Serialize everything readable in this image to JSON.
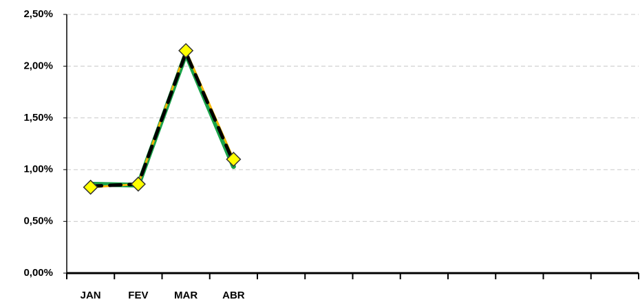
{
  "chart_data": {
    "type": "line",
    "categories": [
      "JAN",
      "FEV",
      "MAR",
      "ABR",
      null,
      null,
      null,
      null,
      null,
      null,
      null,
      null
    ],
    "series": [
      {
        "color": "#1aa34a",
        "values": [
          0.86,
          0.85,
          2.12,
          1.03,
          null,
          null,
          null,
          null,
          null,
          null,
          null,
          null
        ]
      },
      {
        "color": "#f5b400",
        "marker_color": "#ffff00",
        "values": [
          0.83,
          0.86,
          2.15,
          1.1,
          null,
          null,
          null,
          null,
          null,
          null,
          null,
          null
        ]
      },
      {
        "color": "#000000",
        "dashed": true,
        "values": [
          0.84,
          0.86,
          2.13,
          1.07,
          null,
          null,
          null,
          null,
          null,
          null,
          null,
          null
        ]
      }
    ],
    "ylim": [
      0,
      2.5
    ],
    "yticks": [
      {
        "value": 0,
        "label": "0,00%"
      },
      {
        "value": 0.5,
        "label": "0,50%"
      },
      {
        "value": 1,
        "label": "1,00%"
      },
      {
        "value": 1.5,
        "label": "1,50%"
      },
      {
        "value": 2,
        "label": "2,00%"
      },
      {
        "value": 2.5,
        "label": "2,50%"
      }
    ],
    "grid": true
  }
}
